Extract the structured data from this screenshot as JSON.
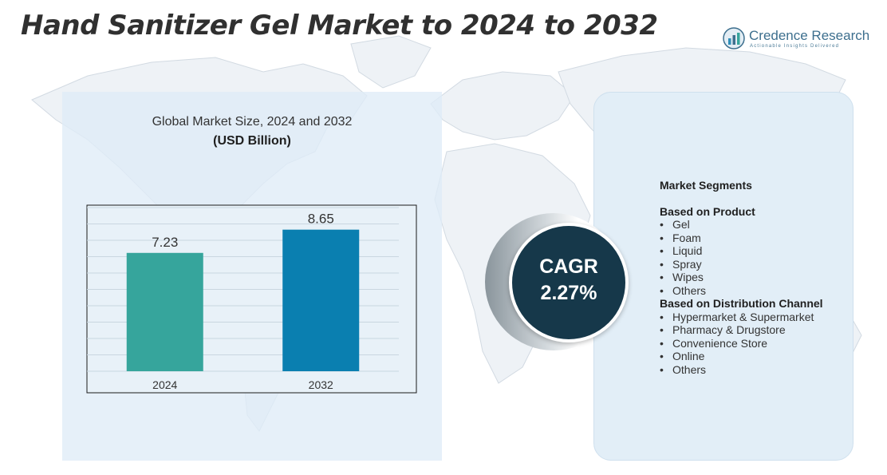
{
  "title": "Hand Sanitizer Gel Market to 2024 to 2032",
  "brand": {
    "name": "Credence Research",
    "tagline": "Actionable Insights Delivered"
  },
  "chart_data": {
    "type": "bar",
    "title": "Global Market Size,  2024 and 2032",
    "subtitle": "(USD Billion)",
    "categories": [
      "2024",
      "2032"
    ],
    "values": [
      7.23,
      8.65
    ],
    "value_labels": [
      "7.23",
      "8.65"
    ],
    "bar_colors": [
      "#36a59c",
      "#0a7fb0"
    ],
    "ylim": [
      0,
      10
    ],
    "grid": true,
    "legend": "none"
  },
  "cagr": {
    "label": "CAGR",
    "value": "2.27%"
  },
  "segments": {
    "heading": "Market Segments",
    "groups": [
      {
        "title": "Based on Product",
        "items": [
          "Gel",
          "Foam",
          "Liquid",
          "Spray",
          "Wipes",
          "Others"
        ]
      },
      {
        "title": "Based on Distribution Channel",
        "items": [
          "Hypermarket & Supermarket",
          "Pharmacy & Drugstore",
          "Convenience Store",
          "Online",
          "Others"
        ]
      }
    ]
  },
  "colors": {
    "cagr_circle": "#16384a",
    "panel_bg": "#dfecf7",
    "title_text": "#303030",
    "brand_text": "#3d6f8e"
  }
}
